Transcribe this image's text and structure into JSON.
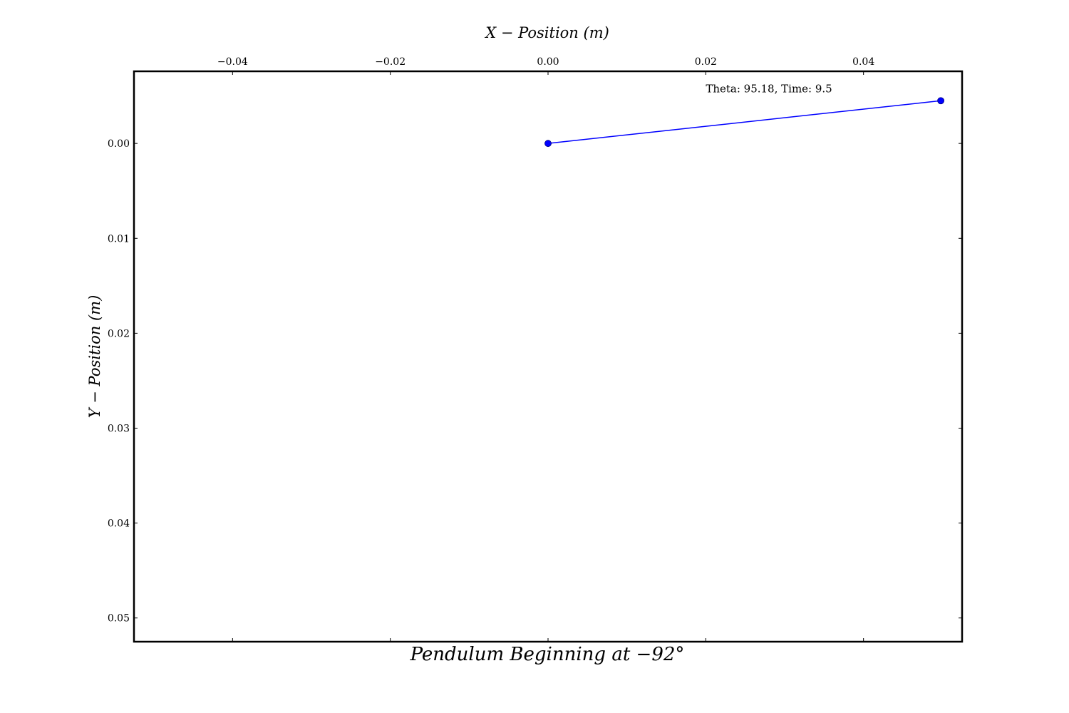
{
  "chart_data": {
    "type": "line",
    "title": "Pendulum Beginning at  −92°",
    "xlabel": "X − Position (m)",
    "ylabel": "Y − Position (m)",
    "xlim": [
      -0.0525,
      0.0525
    ],
    "ylim": [
      0.0525,
      -0.0076
    ],
    "y_inverted": true,
    "x_axis_position": "top",
    "x_ticks": [
      -0.04,
      -0.02,
      0.0,
      0.02,
      0.04
    ],
    "x_tick_labels": [
      "−0.04",
      "−0.02",
      "0.00",
      "0.02",
      "0.04"
    ],
    "y_ticks": [
      0.0,
      0.01,
      0.02,
      0.03,
      0.04,
      0.05
    ],
    "y_tick_labels": [
      "0.00",
      "0.01",
      "0.02",
      "0.03",
      "0.04",
      "0.05"
    ],
    "grid": false,
    "series": [
      {
        "color": "#0000ff",
        "marker": "circle",
        "x": [
          0.0,
          0.0498
        ],
        "y": [
          0.0,
          -0.0045
        ]
      }
    ],
    "annotation": {
      "text": "Theta: 95.18, Time: 9.5",
      "x": 0.02,
      "y": -0.0054
    }
  }
}
